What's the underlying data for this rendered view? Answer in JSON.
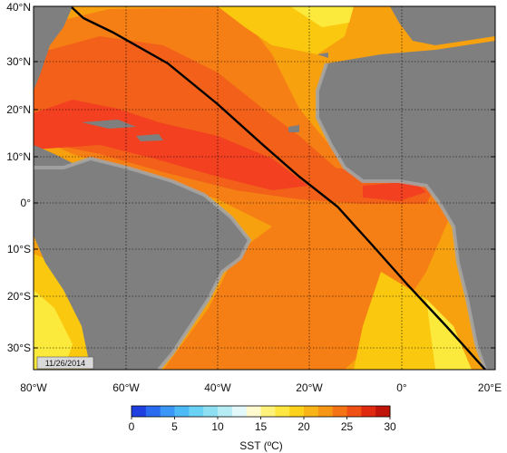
{
  "map": {
    "date_stamp": "11/26/2014",
    "lat_labels": [
      "40°N",
      "30°N",
      "20°N",
      "10°N",
      "0°",
      "10°S",
      "20°S",
      "30°S"
    ],
    "lon_labels": [
      "80°W",
      "60°W",
      "40°W",
      "20°W",
      "0°",
      "20°E"
    ],
    "track_description": "black cruise track line",
    "colors": {
      "land": "#7f7f7f",
      "coast_shelf": "#a6a6a6",
      "sea_warmest": "#f24020",
      "sea_warm": "#f2601a",
      "sea_mid": "#f57f14",
      "sea_cool": "#f7a10f",
      "sea_cooler": "#fac80f",
      "sea_coolest": "#fbe93c",
      "track": "#000000",
      "grid": "#000000"
    }
  },
  "colorbar": {
    "title": "SST (ºC)",
    "ticks": [
      "0",
      "5",
      "10",
      "15",
      "20",
      "25",
      "30"
    ],
    "range": [
      0,
      30
    ],
    "colors": [
      "#1f3fe0",
      "#2a6cf0",
      "#3a96f7",
      "#4bbaf7",
      "#6ad2f5",
      "#8fdff3",
      "#b6ecf4",
      "#e3f8fa",
      "#fffad0",
      "#fff27a",
      "#ffe640",
      "#fcd21a",
      "#f9b418",
      "#f79615",
      "#f47415",
      "#f05014",
      "#e02a10",
      "#c0140a"
    ]
  }
}
